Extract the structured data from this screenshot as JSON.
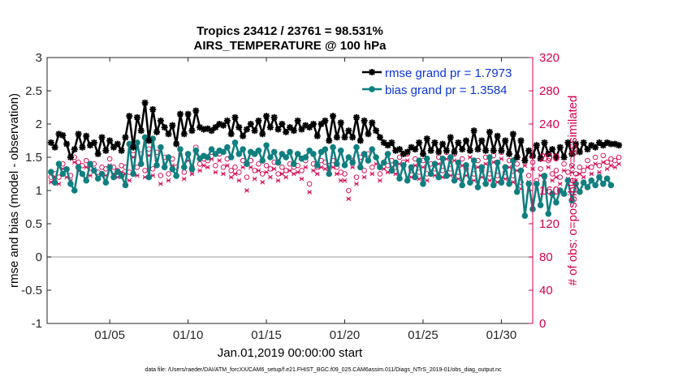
{
  "chart_data": {
    "type": "line",
    "title_line1": "Tropics 23412 / 23761 = 98.531%",
    "title_line2": "AIRS_TEMPERATURE @ 100 hPa",
    "xlabel": "Jan.01,2019 00:00:00 start",
    "ylabel_left": "rmse and bias (model - observation)",
    "ylabel_right": "# of obs: o=possible; ×=assimilated",
    "footer": "data file: /Users/raeder/DAI/ATM_forcXX/CAM6_setup/f.e21.FHIST_BGC.f09_025.CAM6assim.011/Diags_NTrS_2019-01/obs_diag_output.nc",
    "xlim": [
      1.0,
      32.0
    ],
    "ylim_left": [
      -1,
      3
    ],
    "ylim_right": [
      0,
      320
    ],
    "x_ticks": [
      5,
      10,
      15,
      20,
      25,
      30
    ],
    "x_tick_labels": [
      "01/05",
      "01/10",
      "01/15",
      "01/20",
      "01/25",
      "01/30"
    ],
    "y_left_ticks": [
      "-1",
      "-0.5",
      "0",
      "0.5",
      "1",
      "1.5",
      "2",
      "2.5",
      "3"
    ],
    "y_right_ticks": [
      "0",
      "40",
      "80",
      "120",
      "160",
      "200",
      "240",
      "280",
      "320"
    ],
    "zero_line": 0,
    "colors": {
      "rmse": "#000000",
      "bias": "#0f7f80",
      "obs": "#d6004f",
      "legend_text": "#0a36d8",
      "zero_line": "#bdbdbd",
      "right_axis": "#d6004f"
    },
    "legend": {
      "position": "top-right",
      "entries": [
        "rmse grand pr = 1.7973",
        "bias grand pr = 1.3584"
      ]
    },
    "x_start": 1.25,
    "x_step": 0.25,
    "series": [
      {
        "name": "rmse",
        "values": [
          1.72,
          1.65,
          1.85,
          1.83,
          1.7,
          1.5,
          1.62,
          1.85,
          1.65,
          1.82,
          1.68,
          1.72,
          1.55,
          1.8,
          1.6,
          1.75,
          1.65,
          1.7,
          1.6,
          1.8,
          2.12,
          1.65,
          2.1,
          1.9,
          2.32,
          1.75,
          2.22,
          1.88,
          2.05,
          1.95,
          1.85,
          1.98,
          1.7,
          2.15,
          1.85,
          2.15,
          1.9,
          2.2,
          1.95,
          1.92,
          1.93,
          1.9,
          1.95,
          2.0,
          1.98,
          2.05,
          1.85,
          2.1,
          1.95,
          1.82,
          1.92,
          2.0,
          1.9,
          2.05,
          1.85,
          2.12,
          1.95,
          2.1,
          1.92,
          2.0,
          1.88,
          1.95,
          1.9,
          2.05,
          1.92,
          1.98,
          1.95,
          2.0,
          1.82,
          2.0,
          2.05,
          1.75,
          2.12,
          1.8,
          2.02,
          1.8,
          1.9,
          1.8,
          2.1,
          1.75,
          2.05,
          1.85,
          2.02,
          1.9,
          1.8,
          1.72,
          1.68,
          1.72,
          1.6,
          1.62,
          1.55,
          1.58,
          1.65,
          1.62,
          1.72,
          1.55,
          1.78,
          1.6,
          1.72,
          1.58,
          1.7,
          1.6,
          1.8,
          1.58,
          1.72,
          1.62,
          1.75,
          1.6,
          1.9,
          1.62,
          1.75,
          1.6,
          1.88,
          1.6,
          1.82,
          1.6,
          1.75,
          1.55,
          1.85,
          1.5,
          1.75,
          1.45,
          1.6,
          1.52,
          1.68,
          1.48,
          1.72,
          1.55,
          1.62,
          1.5,
          1.65,
          1.5,
          1.72,
          1.55,
          1.7,
          1.58,
          1.72,
          1.62,
          1.68,
          1.65,
          1.72,
          1.68,
          1.72,
          1.7,
          1.7,
          1.68
        ]
      },
      {
        "name": "bias",
        "values": [
          1.28,
          1.12,
          1.4,
          1.25,
          1.32,
          1.1,
          1.0,
          1.35,
          1.25,
          1.15,
          1.4,
          1.3,
          1.18,
          1.25,
          1.12,
          1.35,
          1.2,
          1.28,
          1.22,
          1.08,
          1.7,
          1.25,
          1.72,
          1.4,
          1.8,
          1.2,
          1.78,
          1.38,
          1.65,
          1.35,
          1.5,
          1.32,
          1.22,
          1.62,
          1.35,
          1.55,
          1.32,
          1.6,
          1.48,
          1.52,
          1.5,
          1.62,
          1.55,
          1.6,
          1.58,
          1.65,
          1.5,
          1.72,
          1.55,
          1.62,
          1.4,
          1.58,
          1.55,
          1.6,
          1.45,
          1.68,
          1.5,
          1.58,
          1.42,
          1.55,
          1.5,
          1.58,
          1.4,
          1.55,
          1.48,
          1.5,
          1.6,
          1.55,
          1.38,
          1.58,
          1.62,
          1.25,
          1.65,
          1.4,
          1.6,
          1.38,
          1.5,
          1.42,
          1.65,
          1.35,
          1.55,
          1.45,
          1.62,
          1.5,
          1.35,
          1.42,
          1.55,
          1.3,
          1.42,
          1.18,
          1.38,
          1.15,
          1.35,
          1.2,
          1.45,
          1.1,
          1.48,
          1.25,
          1.4,
          1.2,
          1.48,
          1.22,
          1.5,
          1.15,
          1.42,
          1.08,
          1.38,
          1.12,
          1.45,
          1.05,
          1.35,
          1.1,
          1.5,
          1.08,
          1.42,
          1.12,
          1.35,
          1.1,
          1.45,
          0.98,
          1.3,
          0.62,
          1.1,
          0.72,
          1.1,
          0.78,
          1.22,
          0.65,
          0.95,
          0.82,
          1.0,
          0.95,
          1.15,
          0.85,
          1.1,
          0.98,
          1.12,
          1.05,
          1.15,
          1.08,
          1.2,
          1.1,
          1.18,
          1.08
        ]
      },
      {
        "name": "possible",
        "values": [
          176,
          180,
          176,
          192,
          186,
          178,
          200,
          194,
          190,
          196,
          187,
          192,
          182,
          188,
          186,
          198,
          188,
          184,
          190,
          188,
          182,
          208,
          188,
          204,
          184,
          210,
          186,
          206,
          178,
          200,
          180,
          198,
          188,
          210,
          182,
          204,
          188,
          212,
          192,
          198,
          196,
          206,
          190,
          204,
          188,
          198,
          184,
          188,
          182,
          196,
          176,
          196,
          184,
          192,
          180,
          190,
          186,
          194,
          180,
          188,
          184,
          192,
          188,
          190,
          184,
          196,
          168,
          192,
          188,
          196,
          194,
          190,
          196,
          188,
          182,
          180,
          160,
          196,
          176,
          200,
          184,
          204,
          188,
          200,
          180,
          194,
          190,
          196,
          188,
          200,
          194,
          204,
          184,
          198,
          182,
          196,
          180,
          192,
          186,
          200,
          184,
          206,
          186,
          204,
          182,
          198,
          186,
          208,
          180,
          196,
          184,
          200,
          180,
          202,
          178,
          206,
          182,
          196,
          178,
          192,
          170,
          198,
          178,
          194,
          172,
          186,
          176,
          196,
          180,
          184,
          176,
          192,
          182,
          190,
          180,
          188,
          184,
          196,
          188,
          200,
          190,
          202,
          194,
          198,
          196,
          200
        ]
      },
      {
        "name": "assimilated",
        "values": [
          170,
          176,
          168,
          186,
          176,
          172,
          194,
          184,
          180,
          188,
          178,
          186,
          176,
          180,
          178,
          190,
          180,
          176,
          182,
          180,
          172,
          200,
          178,
          196,
          176,
          202,
          178,
          198,
          168,
          192,
          172,
          190,
          178,
          202,
          174,
          196,
          180,
          204,
          184,
          190,
          188,
          198,
          182,
          196,
          180,
          190,
          176,
          180,
          172,
          188,
          160,
          188,
          174,
          184,
          170,
          182,
          176,
          186,
          172,
          180,
          176,
          184,
          180,
          182,
          174,
          188,
          158,
          184,
          180,
          188,
          186,
          182,
          188,
          180,
          172,
          172,
          150,
          188,
          168,
          192,
          176,
          196,
          180,
          192,
          172,
          186,
          182,
          188,
          180,
          192,
          186,
          196,
          176,
          190,
          174,
          188,
          172,
          184,
          178,
          192,
          176,
          198,
          178,
          196,
          174,
          190,
          178,
          200,
          172,
          188,
          176,
          192,
          172,
          194,
          170,
          198,
          174,
          188,
          170,
          184,
          162,
          190,
          170,
          186,
          164,
          178,
          168,
          188,
          172,
          176,
          168,
          184,
          174,
          182,
          172,
          180,
          176,
          188,
          180,
          192,
          182,
          194,
          186,
          190,
          188,
          192
        ]
      }
    ]
  }
}
